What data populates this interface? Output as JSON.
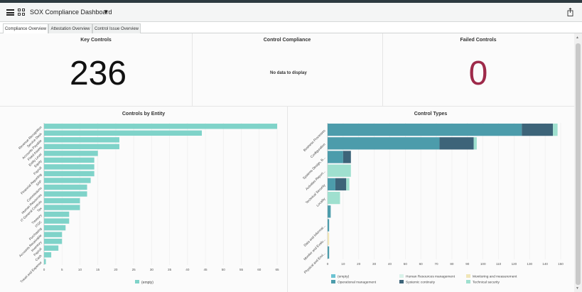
{
  "header": {
    "title": "SOX Compliance Dashboard",
    "caret": "▼",
    "menu_icon": "hamburger-icon",
    "grid_icon": "grid-icon",
    "share_icon": "share-icon"
  },
  "tabs": [
    {
      "label": "Compliance Overview",
      "active": true
    },
    {
      "label": "Attestation Overview",
      "active": false
    },
    {
      "label": "Control Issue Overview",
      "active": false
    }
  ],
  "widgets": {
    "key_controls": {
      "title": "Key Controls",
      "value": "236",
      "color": "#111111"
    },
    "control_compliance": {
      "title": "Control Compliance",
      "message": "No data to display"
    },
    "failed_controls": {
      "title": "Failed Controls",
      "value": "0",
      "color": "#9e2a4a"
    }
  },
  "chart_data": [
    {
      "type": "bar",
      "orientation": "horizontal",
      "title": "Controls by Entity",
      "categories": [
        "Revenue Recognition",
        "Service Desk",
        "Accounts Payable",
        "Fixed Assets",
        "Entity Level",
        "Equity",
        "Payroll",
        "Financial Reporting",
        "SAP",
        "Commissions",
        "Human Resources",
        "IT General Controls",
        "Tax",
        "Treasury",
        "ITGC",
        "Purchasing",
        "Accounts Receivable",
        "Inventory",
        "Payroll",
        "Cash",
        "Travel and Expense"
      ],
      "series": [
        {
          "name": "(empty)",
          "values": [
            65,
            44,
            21,
            21,
            15,
            14,
            14,
            14,
            13,
            12,
            12,
            10,
            10,
            7,
            7,
            6,
            5,
            5,
            4,
            2,
            0.5
          ]
        }
      ],
      "xlim": [
        0,
        65
      ],
      "xticks": [
        "0",
        "5",
        "10",
        "15",
        "20",
        "25",
        "30",
        "35",
        "40",
        "45",
        "50",
        "55",
        "60",
        "65"
      ],
      "legend": "bottom",
      "colors": [
        "#7fd3c9"
      ]
    },
    {
      "type": "bar",
      "orientation": "horizontal",
      "stacked": true,
      "title": "Control Types",
      "categories": [
        "Business Processes",
        "Configuration",
        "Systems Design, B...",
        "Activities Report...",
        "Technical Security",
        "Locality",
        "",
        "Data and Informat...",
        "Monitor and Evalu...",
        "Physical and Envi..."
      ],
      "series": [
        {
          "name": "(empty)",
          "values": [
            0,
            0,
            0,
            0,
            0,
            0,
            0,
            0,
            0,
            0
          ]
        },
        {
          "name": "Human Resources management",
          "values": [
            0,
            0,
            0,
            0,
            0,
            0,
            0,
            0,
            0,
            0
          ]
        },
        {
          "name": "Monitoring and measurement",
          "values": [
            0,
            0,
            0,
            0,
            0,
            0,
            0,
            0,
            1,
            0
          ]
        },
        {
          "name": "Operational management",
          "values": [
            125,
            72,
            10,
            0,
            5,
            0,
            2,
            1,
            0,
            1
          ]
        },
        {
          "name": "Systemic continuity",
          "values": [
            20,
            22,
            5,
            0,
            7,
            0,
            0,
            0,
            0,
            0
          ]
        },
        {
          "name": "Technical security",
          "values": [
            3,
            2,
            0,
            15,
            2,
            8,
            0,
            0,
            0,
            0
          ]
        }
      ],
      "xlim": [
        0,
        150
      ],
      "xticks": [
        "0",
        "10",
        "20",
        "30",
        "40",
        "50",
        "60",
        "70",
        "80",
        "90",
        "100",
        "110",
        "120",
        "130",
        "140",
        "150"
      ],
      "legend": "bottom",
      "colors": [
        "#6cc3d2",
        "#d9f2ea",
        "#f0e6b8",
        "#4c9cab",
        "#3d6479",
        "#9fe0cf"
      ]
    }
  ],
  "legend_entries": [
    {
      "label": "(empty)",
      "color": "#6cc3d2"
    },
    {
      "label": "Human Resources management",
      "color": "#d9f2ea"
    },
    {
      "label": "Monitoring and measurement",
      "color": "#f0e6b8"
    },
    {
      "label": "Operational management",
      "color": "#4c9cab"
    },
    {
      "label": "Systemic continuity",
      "color": "#3d6479"
    },
    {
      "label": "Technical security",
      "color": "#9fe0cf"
    }
  ]
}
